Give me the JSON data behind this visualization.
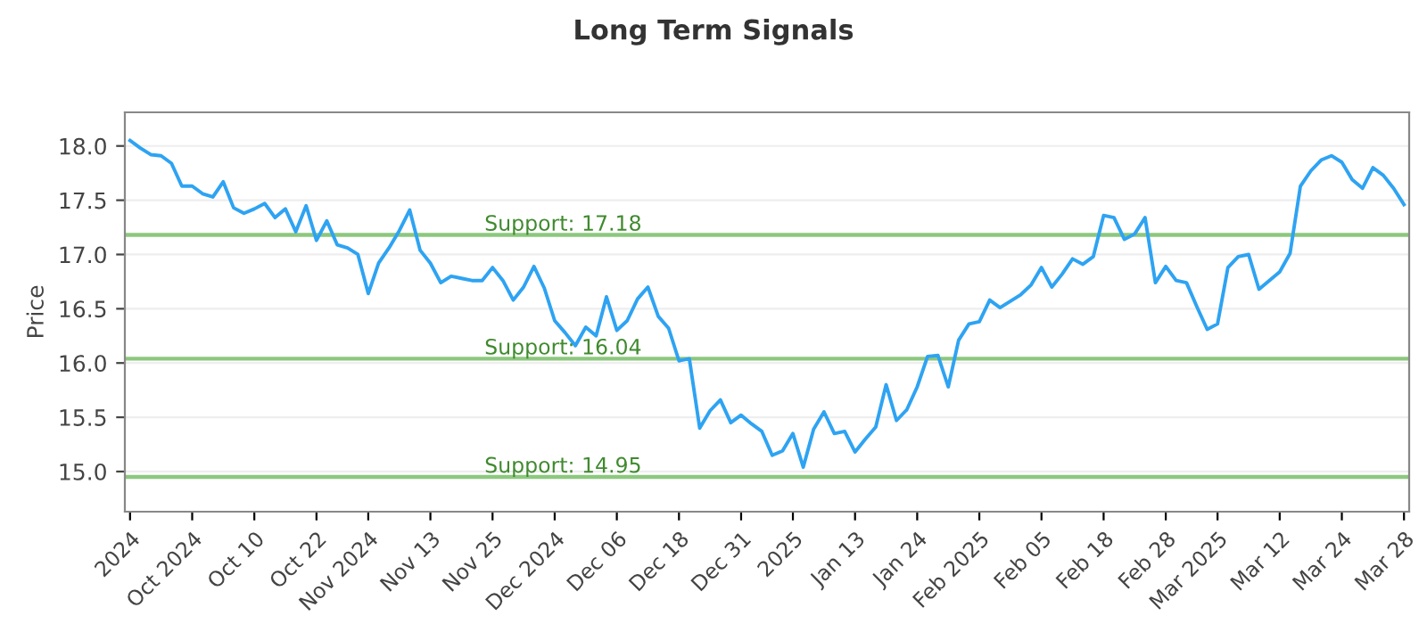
{
  "chart_data": {
    "type": "line",
    "title": "Long Term Signals",
    "ylabel": "Price",
    "categories": [
      "2024",
      null,
      null,
      null,
      null,
      null,
      "Oct 2024",
      null,
      null,
      null,
      null,
      null,
      "Oct 10",
      null,
      null,
      null,
      null,
      null,
      "Oct 22",
      null,
      null,
      null,
      null,
      "Nov 2024",
      null,
      null,
      null,
      null,
      null,
      "Nov 13",
      null,
      null,
      null,
      null,
      null,
      "Nov 25",
      null,
      null,
      null,
      null,
      null,
      "Dec 2024",
      null,
      null,
      null,
      null,
      null,
      "Dec 06",
      null,
      null,
      null,
      null,
      null,
      "Dec 18",
      null,
      null,
      null,
      null,
      null,
      "Dec 31",
      null,
      null,
      null,
      null,
      "2025",
      null,
      null,
      null,
      null,
      null,
      "Jan 13",
      null,
      null,
      null,
      null,
      null,
      "Jan 24",
      null,
      null,
      null,
      null,
      null,
      "Feb 2025",
      null,
      null,
      null,
      null,
      null,
      "Feb 05",
      null,
      null,
      null,
      null,
      null,
      "Feb 18",
      null,
      null,
      null,
      null,
      null,
      "Feb 28",
      null,
      null,
      null,
      null,
      "Mar 2025",
      null,
      null,
      null,
      null,
      null,
      "Mar 12",
      null,
      null,
      null,
      null,
      null,
      "Mar 24",
      null,
      null,
      null,
      null,
      null,
      "Mar 28"
    ],
    "series": [
      {
        "color": "#2ea3f2",
        "values": [
          18.05,
          17.98,
          17.92,
          17.91,
          17.84,
          17.63,
          17.63,
          17.56,
          17.53,
          17.67,
          17.43,
          17.38,
          17.42,
          17.47,
          17.34,
          17.42,
          17.21,
          17.45,
          17.13,
          17.31,
          17.09,
          17.06,
          17.0,
          16.64,
          16.92,
          17.06,
          17.22,
          17.41,
          17.04,
          16.92,
          16.74,
          16.8,
          16.78,
          16.76,
          16.76,
          16.88,
          16.76,
          16.58,
          16.7,
          16.89,
          16.69,
          16.39,
          16.28,
          16.16,
          16.33,
          16.25,
          16.61,
          16.3,
          16.39,
          16.59,
          16.7,
          16.43,
          16.32,
          16.02,
          16.04,
          15.4,
          15.56,
          15.66,
          15.45,
          15.52,
          15.44,
          15.37,
          15.15,
          15.19,
          15.35,
          15.04,
          15.39,
          15.55,
          15.35,
          15.37,
          15.18,
          15.3,
          15.41,
          15.8,
          15.47,
          15.57,
          15.78,
          16.06,
          16.07,
          15.78,
          16.21,
          16.36,
          16.38,
          16.58,
          16.51,
          16.57,
          16.63,
          16.72,
          16.88,
          16.7,
          16.82,
          16.96,
          16.91,
          16.98,
          17.36,
          17.34,
          17.14,
          17.19,
          17.34,
          16.74,
          16.89,
          16.76,
          16.74,
          16.52,
          16.31,
          16.36,
          16.88,
          16.98,
          17.0,
          16.68,
          16.76,
          16.84,
          17.01,
          17.63,
          17.77,
          17.87,
          17.91,
          17.85,
          17.69,
          17.61,
          17.8,
          17.73,
          17.61,
          17.46
        ]
      }
    ],
    "ylim": [
      14.63,
      18.31
    ],
    "yticks": [
      {
        "value": 15,
        "label": "15.0"
      },
      {
        "value": 15.5,
        "label": "15.5"
      },
      {
        "value": 16,
        "label": "16.0"
      },
      {
        "value": 16.5,
        "label": "16.5"
      },
      {
        "value": 17,
        "label": "17.0"
      },
      {
        "value": 17.5,
        "label": "17.5"
      },
      {
        "value": 18,
        "label": "18.0"
      }
    ],
    "grid": "y",
    "ref_lines": [
      {
        "axis": "y",
        "value": 17.18,
        "label": "Support: 17.18",
        "color": "#8cc87e"
      },
      {
        "axis": "y",
        "value": 16.04,
        "label": "Support: 16.04",
        "color": "#8cc87e"
      },
      {
        "axis": "y",
        "value": 14.95,
        "label": "Support: 14.95",
        "color": "#8cc87e"
      }
    ]
  }
}
